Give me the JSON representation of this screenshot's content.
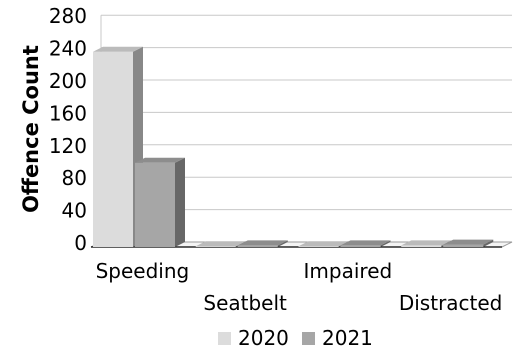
{
  "chart_data": {
    "type": "bar",
    "title": "",
    "xlabel": "",
    "ylabel": "Offence Count",
    "ylim": [
      0,
      280
    ],
    "yticks": [
      "0",
      "40",
      "80",
      "120",
      "160",
      "200",
      "240",
      "280"
    ],
    "categories": [
      "Speeding",
      "Seatbelt",
      "Impaired",
      "Distracted"
    ],
    "series": [
      {
        "name": "2020",
        "values": [
          241,
          1,
          1,
          2
        ],
        "color": "#dcdcdc"
      },
      {
        "name": "2021",
        "values": [
          104,
          2,
          2,
          3
        ],
        "color": "#a6a6a6"
      }
    ],
    "grid": true,
    "legend": "bottom",
    "style": "3d"
  }
}
